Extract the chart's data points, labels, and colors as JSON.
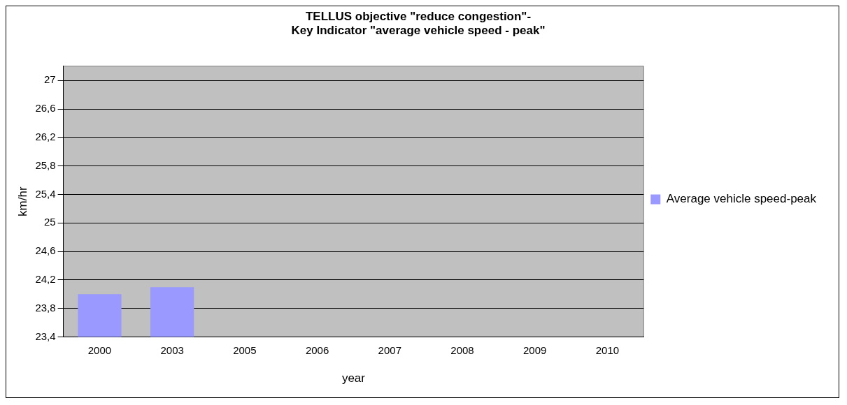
{
  "chart_data": {
    "type": "bar",
    "title": "TELLUS objective \"reduce congestion\"-\nKey Indicator \"average vehicle speed - peak\"",
    "xlabel": "year",
    "ylabel": "km/hr",
    "categories": [
      "2000",
      "2003",
      "2005",
      "2006",
      "2007",
      "2008",
      "2009",
      "2010"
    ],
    "series": [
      {
        "name": "Average vehicle speed-peak",
        "color": "#9999ff",
        "values": [
          24.0,
          24.1,
          null,
          null,
          null,
          null,
          null,
          null
        ]
      }
    ],
    "ylim": [
      23.4,
      27.2
    ],
    "yticks": [
      {
        "value": 23.4,
        "label": "23,4"
      },
      {
        "value": 23.8,
        "label": "23,8"
      },
      {
        "value": 24.2,
        "label": "24,2"
      },
      {
        "value": 24.6,
        "label": "24,6"
      },
      {
        "value": 25,
        "label": "25"
      },
      {
        "value": 25.4,
        "label": "25,4"
      },
      {
        "value": 25.8,
        "label": "25,8"
      },
      {
        "value": 26.2,
        "label": "26,2"
      },
      {
        "value": 26.6,
        "label": "26,6"
      },
      {
        "value": 27,
        "label": "27"
      }
    ],
    "grid": "y",
    "legend": "right"
  }
}
